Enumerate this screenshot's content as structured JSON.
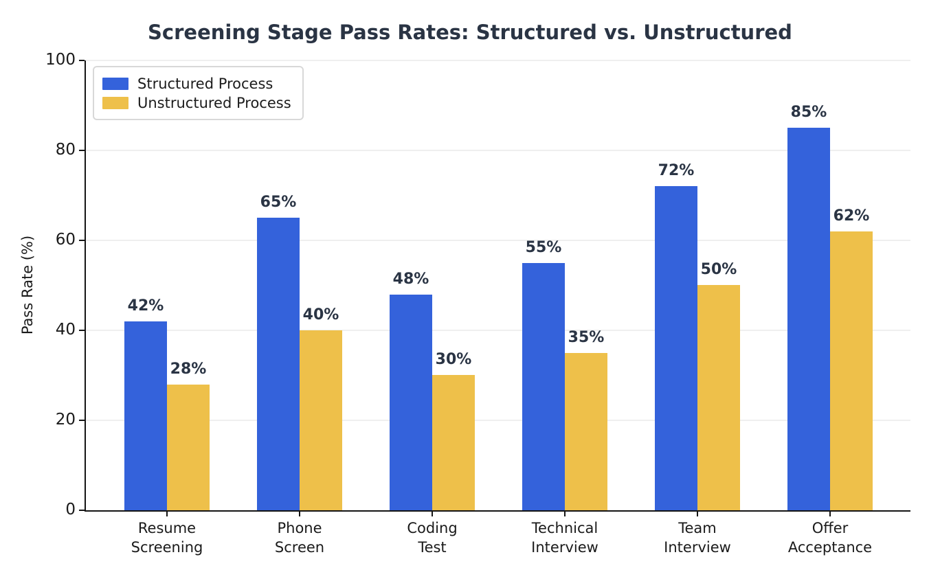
{
  "chart_data": {
    "type": "bar",
    "title": "Screening Stage Pass Rates: Structured vs. Unstructured",
    "xlabel": "",
    "ylabel": "Pass Rate (%)",
    "ylim": [
      0,
      100
    ],
    "yticks": [
      0,
      20,
      40,
      60,
      80,
      100
    ],
    "grid": "horizontal",
    "legend_position": "upper-left",
    "categories": [
      "Resume\nScreening",
      "Phone\nScreen",
      "Coding\nTest",
      "Technical\nInterview",
      "Team\nInterview",
      "Offer\nAcceptance"
    ],
    "series": [
      {
        "name": "Structured Process",
        "color": "#3462db",
        "values": [
          42,
          65,
          48,
          55,
          72,
          85
        ],
        "labels": [
          "42%",
          "65%",
          "48%",
          "55%",
          "72%",
          "85%"
        ]
      },
      {
        "name": "Unstructured Process",
        "color": "#eec04a",
        "values": [
          28,
          40,
          30,
          35,
          50,
          62
        ],
        "labels": [
          "28%",
          "40%",
          "30%",
          "35%",
          "50%",
          "62%"
        ]
      }
    ],
    "colors": {
      "title_text": "#2a3444",
      "value_label_text": "#2a3444",
      "axis_text": "#1a1a1a",
      "gridline": "#efefef",
      "spine": "#141414"
    }
  }
}
